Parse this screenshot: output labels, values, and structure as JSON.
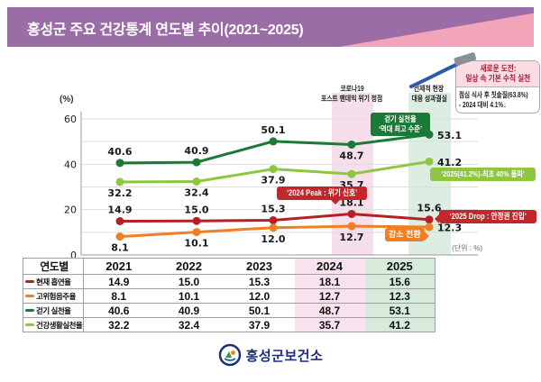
{
  "page": {
    "title": "홍성군 주요 건강통계 연도별 추이(2021~2025)",
    "unit_note": "(단위 : %)",
    "footer_org": "홍성군보건소"
  },
  "colors": {
    "banner_purple": "#9b6da7",
    "banner_pink": "#f2a4b9",
    "band_2024_pink": "#f6dfeb",
    "band_2025_green": "#dcede2",
    "badge_red": "#c1272d",
    "badge_orange": "#ef7f22",
    "badge_dark_green": "#1b7a35",
    "badge_light_green": "#8dc63f",
    "footer_navy": "#1c2f7c"
  },
  "callout": {
    "header_line1": "새로운 도전:",
    "header_line2": "일상 속 기본 수칙 실천",
    "body_line1": "점심 식사 후 칫솔질(63.8%)",
    "body_line2": "- 2024 대비 4.1%↓"
  },
  "annotations": {
    "band_2024_line1": "코로나19",
    "band_2024_line2": "포스트 팬데믹 위기 정점",
    "band_2025_line1": "선제적 현장",
    "band_2025_line2": "대응 성과결실",
    "walking_badge_line1": "걷기 실천율",
    "walking_badge_line2": "‘역대 최고 수준’",
    "healthy_badge": "‘2025(41.2%)-최초 40% 돌파’",
    "smoke_peak_badge": "‘2024 Peak : 위기 신호’",
    "smoke_drop_badge": "‘2025 Drop : 안정권 진입’",
    "drink_badge": "감소 전환"
  },
  "chart_data": {
    "type": "line",
    "x": [
      "2021",
      "2022",
      "2023",
      "2024",
      "2025"
    ],
    "ylabel": "(%)",
    "ylim": [
      0,
      60
    ],
    "yticks_labeled": [
      0,
      20,
      40,
      60
    ],
    "grid_step": 10,
    "legend_position": "table-below",
    "highlight_bands": [
      {
        "x": "2024",
        "meaning": "코로나19 포스트 팬데믹 위기 정점"
      },
      {
        "x": "2025",
        "meaning": "선제적 현장 대응 성과결실"
      }
    ],
    "series": [
      {
        "id": "smoking",
        "name": "현재 흡연율",
        "color": "#b42025",
        "values": [
          14.9,
          15.0,
          15.3,
          18.1,
          15.6
        ],
        "label_pos": [
          "above",
          "above",
          "above",
          "above",
          "above"
        ]
      },
      {
        "id": "drinking",
        "name": "고위험음주율",
        "color": "#ef7f22",
        "values": [
          8.1,
          10.1,
          12.0,
          12.7,
          12.3
        ],
        "label_pos": [
          "below",
          "below",
          "below",
          "below",
          "right"
        ]
      },
      {
        "id": "walking",
        "name": "걷기 실천율",
        "color": "#1b7a35",
        "values": [
          40.6,
          40.9,
          50.1,
          48.7,
          53.1
        ],
        "label_pos": [
          "above",
          "above",
          "above",
          "below",
          "right"
        ]
      },
      {
        "id": "healthy-life",
        "name": "건강생활실천율",
        "color": "#8dc63f",
        "values": [
          32.2,
          32.4,
          37.9,
          35.7,
          41.2
        ],
        "label_pos": [
          "below",
          "below",
          "below",
          "below",
          "right"
        ]
      }
    ]
  },
  "table": {
    "corner_header": "연도별",
    "years": [
      "2021",
      "2022",
      "2023",
      "2024",
      "2025"
    ]
  }
}
